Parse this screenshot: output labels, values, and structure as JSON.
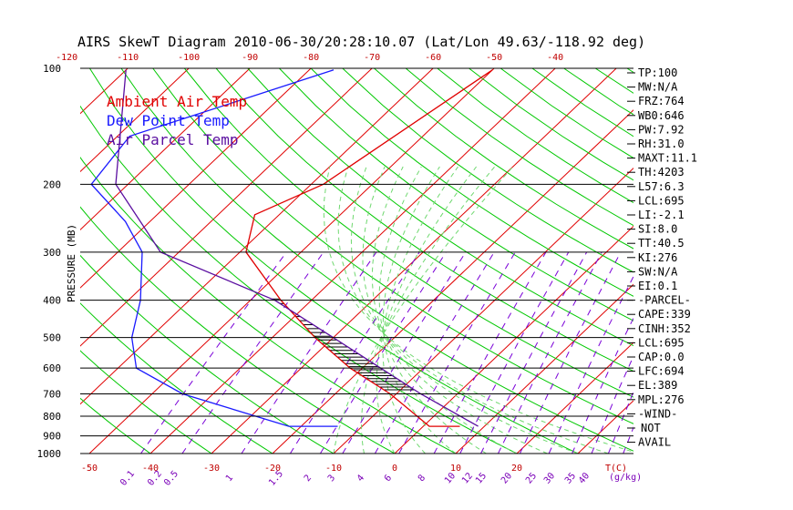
{
  "title": "AIRS SkewT Diagram 2010-06-30/20:28:10.07 (Lat/Lon 49.63/-118.92 deg)",
  "colors": {
    "ambient": "#e00000",
    "dewpoint": "#1a1aff",
    "parcel": "#5a0ea0",
    "isotherm": "#e00000",
    "dry_adiabat": "#00c800",
    "moist_adiabat": "#6fd86f",
    "mixing_ratio": "#7a00d8",
    "hatch": "#000000"
  },
  "legend": [
    {
      "label": "Ambient Air Temp",
      "color": "#e00000"
    },
    {
      "label": "Dew Point Temp",
      "color": "#1a1aff"
    },
    {
      "label": "Air Parcel Temp",
      "color": "#5a0ea0"
    }
  ],
  "indices": [
    "TP:100",
    "MW:N/A",
    "FRZ:764",
    "WB0:646",
    "PW:7.92",
    "RH:31.0",
    "MAXT:11.1",
    "TH:4203",
    "L57:6.3",
    "LCL:695",
    "LI:-2.1",
    "SI:8.0",
    "TT:40.5",
    "KI:276",
    "SW:N/A",
    "EI:0.1",
    "-PARCEL-",
    "CAPE:339",
    "CINH:352",
    "LCL:695",
    "CAP:0.0",
    "LFC:694",
    "EL:389",
    "MPL:276",
    "-WIND-",
    "NOT",
    "AVAIL"
  ],
  "chart_data": {
    "type": "line",
    "title": "AIRS SkewT Diagram 2010-06-30/20:28:10.07 (Lat/Lon 49.63/-118.92 deg)",
    "ylabel": "PRESSURE (MB)",
    "y_scale": "log",
    "ylim": [
      1000,
      100
    ],
    "pressure_ticks": [
      100,
      200,
      300,
      400,
      500,
      600,
      700,
      800,
      900,
      1000
    ],
    "top_temp_ticks": [
      -120,
      -110,
      -100,
      -90,
      -80,
      -70,
      -60,
      -50,
      -40
    ],
    "bottom_temp_ticks": [
      -50,
      -40,
      -30,
      -20,
      -10,
      0,
      10,
      20
    ],
    "bottom_temp_unit": "T(C)",
    "mixing_ratio_ticks": [
      "0.1",
      "0.2",
      "0.5",
      "1",
      "1.5",
      "2",
      "3",
      "4",
      "6",
      "8",
      "10",
      "12",
      "15",
      "20",
      "25",
      "30",
      "35",
      "40"
    ],
    "mixing_ratio_unit": "(g/kg)",
    "series": [
      {
        "name": "Ambient Air Temp",
        "pressure": [
          101,
          200,
          240,
          300,
          400,
          500,
          600,
          700,
          850,
          850
        ],
        "temp": [
          -50,
          -58,
          -64,
          -59,
          -45,
          -33,
          -22,
          -11,
          1,
          6
        ]
      },
      {
        "name": "Dew Point Temp",
        "pressure": [
          101,
          150,
          200,
          250,
          300,
          400,
          500,
          600,
          700,
          850,
          850
        ],
        "temp": [
          -76,
          -98,
          -96,
          -84,
          -76,
          -68,
          -63,
          -57,
          -45,
          -22,
          -14
        ]
      },
      {
        "name": "Air Parcel Temp",
        "pressure": [
          101,
          200,
          300,
          400,
          500,
          600,
          700,
          850
        ],
        "temp": [
          -110,
          -92,
          -73,
          -46,
          -30,
          -17,
          -6,
          9
        ]
      }
    ],
    "cape_region": {
      "pressure_range": [
        389,
        694
      ]
    }
  }
}
